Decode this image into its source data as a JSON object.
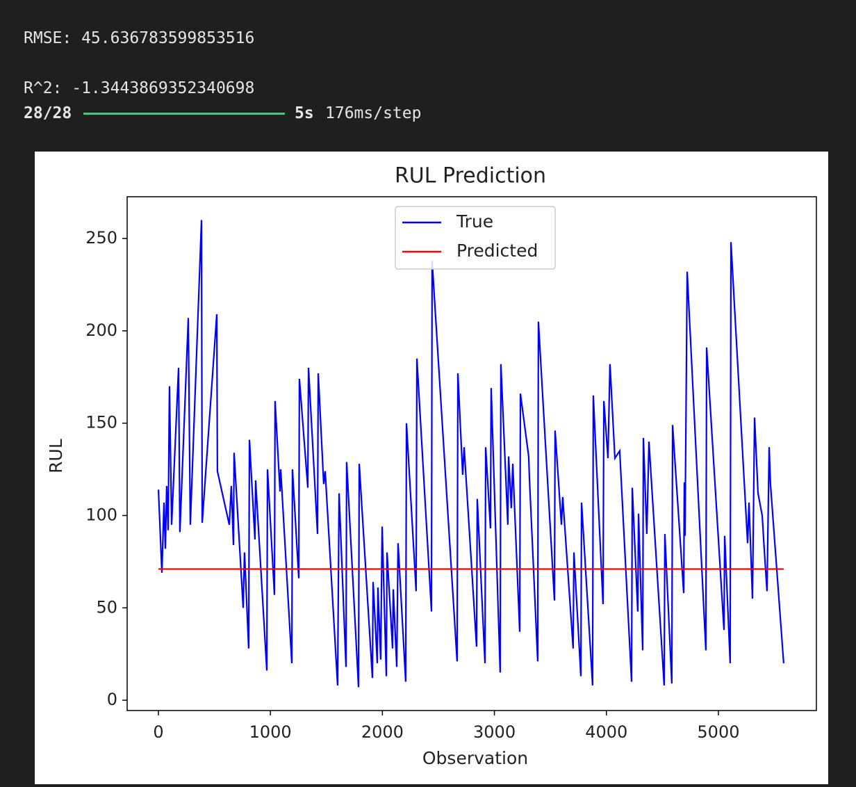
{
  "output": {
    "rmse": "RMSE: 45.636783599853516",
    "r2": "R^2: -1.3443869352340698",
    "progress": {
      "count": "28/28",
      "time": "5s",
      "rate": "176ms/step"
    }
  },
  "chart_data": {
    "type": "line",
    "title": "RUL Prediction",
    "x_label": "Observation",
    "y_label": "RUL",
    "xlim": [
      -279,
      5875
    ],
    "ylim": [
      -5.6,
      272.6
    ],
    "xticks": [
      0,
      1000,
      2000,
      3000,
      4000,
      5000
    ],
    "yticks": [
      0,
      50,
      100,
      150,
      200,
      250
    ],
    "legend": "upper center",
    "grid": false,
    "series": [
      {
        "name": "True",
        "color": "#0000ff",
        "x": [
          0,
          31,
          50,
          62,
          74,
          87,
          99,
          118,
          180,
          192,
          267,
          285,
          385,
          391,
          521,
          527,
          633,
          651,
          670,
          676,
          757,
          769,
          806,
          813,
          862,
          868,
          968,
          974,
          1036,
          1042,
          1086,
          1092,
          1191,
          1197,
          1253,
          1259,
          1334,
          1340,
          1421,
          1427,
          1476,
          1489,
          1600,
          1613,
          1675,
          1681,
          1787,
          1793,
          1911,
          1917,
          1954,
          1960,
          1985,
          1998,
          2035,
          2041,
          2091,
          2097,
          2128,
          2140,
          2208,
          2215,
          2301,
          2308,
          2438,
          2444,
          2667,
          2674,
          2717,
          2730,
          2841,
          2847,
          2916,
          2922,
          2965,
          2971,
          3052,
          3058,
          3120,
          3127,
          3151,
          3164,
          3226,
          3232,
          3306,
          3313,
          3387,
          3393,
          3536,
          3542,
          3598,
          3610,
          3703,
          3710,
          3772,
          3778,
          3877,
          3883,
          3970,
          3977,
          4014,
          4032,
          4076,
          4119,
          4225,
          4231,
          4280,
          4287,
          4324,
          4330,
          4361,
          4380,
          4516,
          4522,
          4584,
          4591,
          4690,
          4696,
          4702,
          4721,
          4888,
          4895,
          5050,
          5056,
          5105,
          5112,
          5261,
          5273,
          5304,
          5323,
          5354,
          5391,
          5409,
          5434,
          5453,
          5465,
          5583
        ],
        "values": [
          114,
          69,
          107,
          82,
          116,
          92,
          170,
          95,
          180,
          91,
          207,
          95,
          260,
          96,
          209,
          124,
          95,
          116,
          84,
          134,
          50,
          80,
          28,
          141,
          87,
          119,
          16,
          125,
          57,
          162,
          113,
          125,
          20,
          125,
          66,
          174,
          115,
          180,
          90,
          177,
          117,
          124,
          8,
          112,
          18,
          129,
          7,
          128,
          12,
          64,
          20,
          61,
          22,
          94,
          13,
          80,
          28,
          60,
          18,
          85,
          10,
          150,
          59,
          185,
          48,
          238,
          21,
          177,
          122,
          137,
          29,
          109,
          20,
          137,
          93,
          169,
          15,
          182,
          95,
          132,
          104,
          128,
          37,
          166,
          132,
          120,
          21,
          205,
          54,
          146,
          95,
          110,
          28,
          80,
          13,
          107,
          8,
          165,
          52,
          162,
          131,
          182,
          131,
          135,
          10,
          115,
          48,
          101,
          27,
          142,
          90,
          140,
          8,
          90,
          9,
          149,
          58,
          118,
          89,
          232,
          27,
          191,
          38,
          89,
          20,
          248,
          85,
          107,
          55,
          153,
          112,
          100,
          82,
          59,
          137,
          117,
          20
        ]
      },
      {
        "name": "Predicted",
        "color": "#ff0000",
        "x": [
          0,
          5583
        ],
        "values": [
          71,
          71
        ]
      }
    ]
  }
}
